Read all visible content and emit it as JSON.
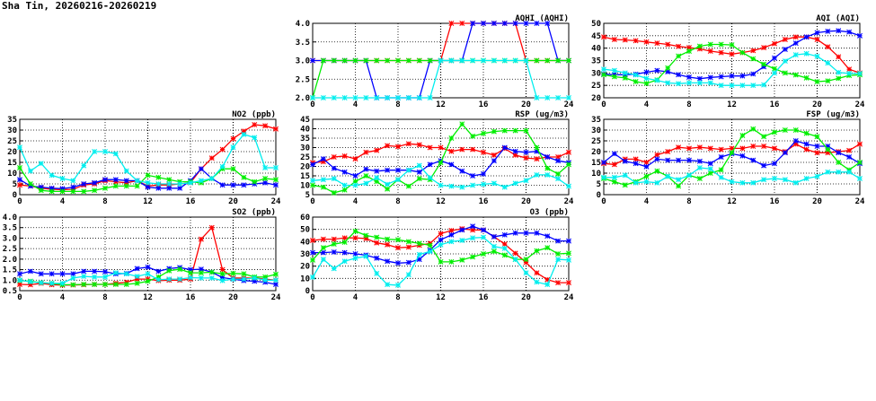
{
  "page": {
    "title": "Sha Tin, 20260216-20260219"
  },
  "colors": {
    "red": "#ff0000",
    "blue": "#0000ff",
    "green": "#00ee00",
    "cyan": "#00eeee"
  },
  "chart_data": [
    {
      "type": "line",
      "title": "AQHI (AQHI)",
      "xlabel": "",
      "ylabel": "",
      "xlim": [
        0,
        24
      ],
      "ylim": [
        2,
        4
      ],
      "xticks": [
        "0",
        "4",
        "8",
        "12",
        "16",
        "20",
        "24"
      ],
      "yticks": [
        "2.0",
        "2.5",
        "3.0",
        "3.5",
        "4.0"
      ],
      "ytick_values": [
        2,
        2.5,
        3,
        3.5,
        4
      ],
      "grid": true,
      "series": [
        {
          "color": "red",
          "values": [
            3,
            3,
            3,
            3,
            3,
            3,
            3,
            3,
            3,
            3,
            3,
            3,
            3,
            4,
            4,
            4,
            4,
            4,
            4,
            4,
            3,
            3,
            3,
            3,
            3
          ]
        },
        {
          "color": "blue",
          "values": [
            3,
            3,
            3,
            3,
            3,
            3,
            2,
            2,
            2,
            2,
            2,
            3,
            3,
            3,
            3,
            4,
            4,
            4,
            4,
            4,
            4,
            4,
            4,
            3,
            3
          ]
        },
        {
          "color": "green",
          "values": [
            2,
            3,
            3,
            3,
            3,
            3,
            3,
            3,
            3,
            3,
            3,
            3,
            3,
            3,
            3,
            3,
            3,
            3,
            3,
            3,
            3,
            3,
            3,
            3,
            3
          ]
        },
        {
          "color": "cyan",
          "values": [
            2,
            2,
            2,
            2,
            2,
            2,
            2,
            2,
            2,
            2,
            2,
            2,
            3,
            3,
            3,
            3,
            3,
            3,
            3,
            3,
            3,
            2,
            2,
            2,
            2
          ]
        }
      ]
    },
    {
      "type": "line",
      "title": "AQI (AQI)",
      "xlabel": "",
      "ylabel": "",
      "xlim": [
        0,
        24
      ],
      "ylim": [
        20,
        50
      ],
      "xticks": [
        "0",
        "4",
        "8",
        "12",
        "16",
        "20",
        "24"
      ],
      "yticks": [
        "20",
        "25",
        "30",
        "35",
        "40",
        "45",
        "50"
      ],
      "ytick_values": [
        20,
        25,
        30,
        35,
        40,
        45,
        50
      ],
      "grid": true,
      "series": [
        {
          "color": "red",
          "values": [
            44.5,
            43.5,
            43.3,
            43,
            42.5,
            42,
            41.5,
            40.7,
            40.2,
            39.7,
            38.8,
            38.2,
            37.6,
            38.2,
            39,
            40.2,
            41.8,
            43.5,
            44.5,
            44.5,
            43.5,
            40.5,
            36.5,
            31.5,
            30
          ]
        },
        {
          "color": "blue",
          "values": [
            29.5,
            29.3,
            29.3,
            29.5,
            30.3,
            31,
            30.5,
            29.3,
            28.3,
            27.7,
            28.2,
            28.5,
            28.8,
            28.8,
            29.6,
            32.5,
            36,
            39.5,
            42,
            44.5,
            46.2,
            46.8,
            47,
            46.5,
            45
          ]
        },
        {
          "color": "green",
          "values": [
            29.3,
            28.5,
            28,
            26.5,
            25.8,
            27.2,
            32,
            36.8,
            38.8,
            40.8,
            41.5,
            41.5,
            41.3,
            38.2,
            35.7,
            33.5,
            31.7,
            30,
            29.2,
            28,
            26.5,
            26.8,
            27.8,
            29,
            29.3
          ]
        },
        {
          "color": "cyan",
          "values": [
            31.5,
            31,
            30,
            29.2,
            27.8,
            27,
            26,
            25.7,
            26,
            26,
            26,
            25,
            25,
            25,
            25,
            25.2,
            30,
            34.8,
            37.3,
            37.8,
            36.7,
            34,
            30.2,
            29.8,
            29.8
          ]
        }
      ]
    },
    {
      "type": "line",
      "title": "NO2 (ppb)",
      "xlabel": "",
      "ylabel": "",
      "xlim": [
        0,
        24
      ],
      "ylim": [
        0,
        35
      ],
      "xticks": [
        "0",
        "4",
        "8",
        "12",
        "16",
        "20",
        "24"
      ],
      "yticks": [
        "0",
        "5",
        "10",
        "15",
        "20",
        "25",
        "30",
        "35"
      ],
      "ytick_values": [
        0,
        5,
        10,
        15,
        20,
        25,
        30,
        35
      ],
      "grid": true,
      "series": [
        {
          "color": "red",
          "values": [
            4.5,
            4,
            3,
            2.5,
            2.3,
            2.5,
            4.5,
            5,
            6.5,
            6,
            5.5,
            6.5,
            4,
            4.5,
            4.5,
            5,
            5.5,
            12,
            17,
            21,
            26,
            29.5,
            32.5,
            32,
            30.5
          ]
        },
        {
          "color": "blue",
          "values": [
            7,
            4,
            3.5,
            3,
            2.8,
            3.5,
            5,
            5.5,
            7,
            7,
            6.5,
            6.5,
            3.5,
            3,
            3,
            3,
            6.5,
            12,
            7.5,
            4.5,
            4.5,
            4.5,
            5,
            5.5,
            4.5
          ]
        },
        {
          "color": "green",
          "values": [
            12.5,
            5,
            2,
            1.5,
            1.5,
            1.5,
            1.5,
            2,
            3,
            4,
            4,
            4,
            9,
            8,
            7,
            6,
            6,
            5.5,
            7.5,
            12,
            12,
            8,
            6,
            7.5,
            7
          ]
        },
        {
          "color": "cyan",
          "values": [
            22,
            11,
            14.5,
            9,
            7.5,
            6.5,
            13.5,
            20,
            20,
            19,
            11,
            6.5,
            5.5,
            5,
            5,
            5,
            5.5,
            6.5,
            7.5,
            13,
            22,
            28,
            26.5,
            12.5,
            12.5
          ]
        }
      ]
    },
    {
      "type": "line",
      "title": "RSP (ug/m3)",
      "xlabel": "",
      "ylabel": "",
      "xlim": [
        0,
        24
      ],
      "ylim": [
        5,
        45
      ],
      "xticks": [
        "0",
        "4",
        "8",
        "12",
        "16",
        "20",
        "24"
      ],
      "yticks": [
        "5",
        "10",
        "15",
        "20",
        "25",
        "30",
        "35",
        "40",
        "45"
      ],
      "ytick_values": [
        5,
        10,
        15,
        20,
        25,
        30,
        35,
        40,
        45
      ],
      "grid": true,
      "series": [
        {
          "color": "red",
          "values": [
            22,
            22.5,
            25,
            25.5,
            24,
            27.5,
            28.5,
            31,
            30.5,
            32,
            31.5,
            30,
            30,
            28,
            29,
            29,
            27.5,
            26,
            29.5,
            26,
            24.5,
            24,
            25,
            25,
            27.5
          ]
        },
        {
          "color": "blue",
          "values": [
            21,
            24,
            19,
            17,
            15,
            18.5,
            17.5,
            18,
            18,
            18,
            17,
            21,
            23,
            21,
            17.5,
            15,
            16,
            23,
            30,
            28,
            27.5,
            28,
            25,
            23,
            22
          ]
        },
        {
          "color": "green",
          "values": [
            10,
            9,
            6,
            7.5,
            12,
            15,
            12,
            8,
            13,
            9.5,
            13.5,
            13,
            22,
            35,
            42.5,
            36,
            37.5,
            38.5,
            39,
            39,
            39,
            30,
            19,
            16,
            21
          ]
        },
        {
          "color": "cyan",
          "values": [
            12.5,
            13,
            13.5,
            10,
            10,
            11,
            14,
            10.5,
            13,
            18,
            20.5,
            14,
            10,
            9.5,
            9,
            10,
            10.5,
            11,
            9,
            11,
            12.5,
            15.5,
            15.5,
            13.5,
            9.5
          ]
        }
      ]
    },
    {
      "type": "line",
      "title": "FSP (ug/m3)",
      "xlabel": "",
      "ylabel": "",
      "xlim": [
        0,
        24
      ],
      "ylim": [
        0,
        35
      ],
      "xticks": [
        "0",
        "4",
        "8",
        "12",
        "16",
        "20",
        "24"
      ],
      "yticks": [
        "0",
        "5",
        "10",
        "15",
        "20",
        "25",
        "30",
        "35"
      ],
      "ytick_values": [
        0,
        5,
        10,
        15,
        20,
        25,
        30,
        35
      ],
      "grid": true,
      "series": [
        {
          "color": "red",
          "values": [
            14.5,
            14,
            16.5,
            16.5,
            15,
            18.5,
            20,
            22,
            21.5,
            22,
            21.5,
            21,
            21.5,
            21.5,
            22.5,
            22.5,
            21.5,
            20,
            23.5,
            21,
            19.5,
            19.5,
            20,
            20.5,
            23.5
          ]
        },
        {
          "color": "blue",
          "values": [
            15,
            19,
            15.5,
            14.5,
            13,
            16.5,
            16,
            16,
            16,
            15.5,
            14.5,
            17.5,
            19,
            18,
            16,
            13.5,
            14.5,
            19.5,
            25,
            23.5,
            22.5,
            22.5,
            19.5,
            17.5,
            14.5
          ]
        },
        {
          "color": "green",
          "values": [
            7.5,
            6,
            4.5,
            6,
            8.5,
            11,
            8.5,
            4,
            9,
            7.5,
            10,
            11.5,
            19.5,
            27.5,
            30.5,
            27,
            29,
            30,
            30,
            28.5,
            27,
            21,
            15,
            11.5,
            15
          ]
        },
        {
          "color": "cyan",
          "values": [
            8,
            8,
            9,
            5.5,
            6,
            5.5,
            8.5,
            7,
            9,
            12.5,
            12,
            8,
            6,
            5.5,
            5.5,
            7,
            7.5,
            7,
            5.5,
            7.5,
            8.5,
            10.5,
            10.5,
            10.5,
            7.5
          ]
        }
      ]
    },
    {
      "type": "line",
      "title": "SO2 (ppb)",
      "xlabel": "",
      "ylabel": "",
      "xlim": [
        0,
        24
      ],
      "ylim": [
        0.5,
        4
      ],
      "xticks": [
        "0",
        "4",
        "8",
        "12",
        "16",
        "20",
        "24"
      ],
      "yticks": [
        "0.5",
        "1.0",
        "1.5",
        "2.0",
        "2.5",
        "3.0",
        "3.5",
        "4.0"
      ],
      "ytick_values": [
        0.5,
        1,
        1.5,
        2,
        2.5,
        3,
        3.5,
        4
      ],
      "grid": true,
      "series": [
        {
          "color": "red",
          "values": [
            0.8,
            0.78,
            0.85,
            0.78,
            0.76,
            0.77,
            0.78,
            0.8,
            0.8,
            0.85,
            0.9,
            1.05,
            1.05,
            0.98,
            1.0,
            1.0,
            1.05,
            2.95,
            3.5,
            1.5,
            1.1,
            1.1,
            1.1,
            1.05,
            1.0
          ]
        },
        {
          "color": "blue",
          "values": [
            1.3,
            1.42,
            1.3,
            1.3,
            1.3,
            1.3,
            1.42,
            1.42,
            1.4,
            1.3,
            1.32,
            1.55,
            1.62,
            1.42,
            1.55,
            1.6,
            1.5,
            1.52,
            1.38,
            1.12,
            1.05,
            0.98,
            0.95,
            0.9,
            0.8
          ]
        },
        {
          "color": "green",
          "values": [
            0.98,
            0.95,
            0.88,
            0.85,
            0.78,
            0.78,
            0.8,
            0.8,
            0.8,
            0.8,
            0.8,
            0.85,
            0.95,
            1.15,
            1.45,
            1.52,
            1.35,
            1.35,
            1.38,
            1.3,
            1.32,
            1.3,
            1.15,
            1.15,
            1.28
          ]
        },
        {
          "color": "cyan",
          "values": [
            1.0,
            0.92,
            0.88,
            0.85,
            0.85,
            1.1,
            1.18,
            1.15,
            1.15,
            1.35,
            1.3,
            1.18,
            1.3,
            1.02,
            1.05,
            1.05,
            1.12,
            1.1,
            1.1,
            0.98,
            1.05,
            1.05,
            1.1,
            1.0,
            1.0
          ]
        }
      ]
    },
    {
      "type": "line",
      "title": "O3 (ppb)",
      "xlabel": "",
      "ylabel": "",
      "xlim": [
        0,
        24
      ],
      "ylim": [
        0,
        60
      ],
      "xticks": [
        "0",
        "4",
        "8",
        "12",
        "16",
        "20",
        "24"
      ],
      "yticks": [
        "0",
        "10",
        "20",
        "30",
        "40",
        "50",
        "60"
      ],
      "ytick_values": [
        0,
        10,
        20,
        30,
        40,
        50,
        60
      ],
      "grid": true,
      "series": [
        {
          "color": "red",
          "values": [
            41,
            42,
            42,
            43,
            43,
            42.5,
            39,
            37.5,
            35,
            35.5,
            37,
            38.5,
            46.5,
            49,
            50.5,
            49.5,
            49.5,
            44,
            38,
            30.5,
            23,
            14.5,
            9,
            6.5,
            6.5
          ]
        },
        {
          "color": "blue",
          "values": [
            31,
            31,
            31.5,
            31,
            30,
            29,
            26.5,
            24,
            22.5,
            23,
            25.5,
            33,
            41.5,
            45.5,
            49.5,
            52.5,
            49.5,
            44,
            45.5,
            47,
            47,
            47,
            44.5,
            40.5,
            40.5
          ]
        },
        {
          "color": "green",
          "values": [
            25,
            35,
            38,
            39.5,
            48.5,
            45,
            43.5,
            42,
            41.5,
            40,
            38.5,
            37,
            23.5,
            23.5,
            25,
            27.5,
            30,
            32,
            29,
            25.5,
            25.5,
            32.5,
            35,
            30,
            30.5
          ]
        },
        {
          "color": "cyan",
          "values": [
            11,
            25.5,
            18,
            24,
            26.5,
            28,
            14,
            5,
            4.5,
            13,
            29.5,
            32,
            37.5,
            40,
            41,
            43,
            43.5,
            36,
            34.5,
            25.5,
            14.5,
            7,
            5,
            25.5,
            25
          ]
        }
      ]
    }
  ]
}
